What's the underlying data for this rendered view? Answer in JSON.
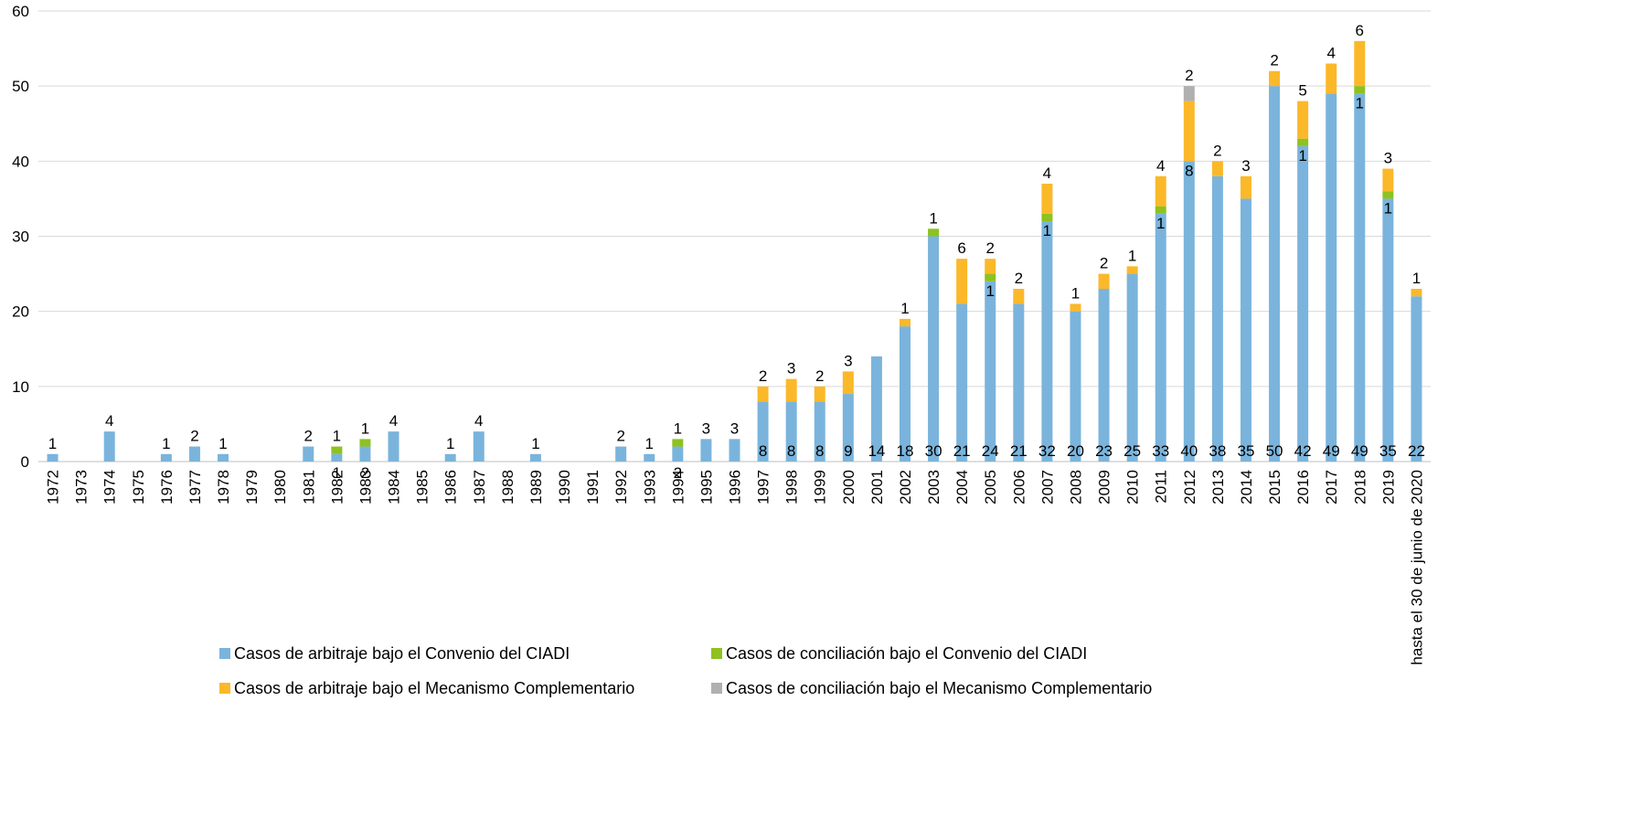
{
  "chart_data": {
    "type": "stacked_bar",
    "categories": [
      "1972",
      "1973",
      "1974",
      "1975",
      "1976",
      "1977",
      "1978",
      "1979",
      "1980",
      "1981",
      "1982",
      "1983",
      "1984",
      "1985",
      "1986",
      "1987",
      "1988",
      "1989",
      "1990",
      "1991",
      "1992",
      "1993",
      "1994",
      "1995",
      "1996",
      "1997",
      "1998",
      "1999",
      "2000",
      "2001",
      "2002",
      "2003",
      "2004",
      "2005",
      "2006",
      "2007",
      "2008",
      "2009",
      "2010",
      "2011",
      "2012",
      "2013",
      "2014",
      "2015",
      "2016",
      "2017",
      "2018",
      "2019",
      "hasta el 30 de junio de 2020"
    ],
    "series": [
      {
        "name": "Casos de arbitraje bajo el Convenio del CIADI",
        "color": "#7ab4dc",
        "values": [
          1,
          null,
          4,
          null,
          1,
          2,
          1,
          null,
          null,
          2,
          1,
          2,
          4,
          null,
          1,
          4,
          null,
          1,
          null,
          null,
          2,
          1,
          2,
          3,
          3,
          8,
          8,
          8,
          9,
          14,
          18,
          30,
          21,
          24,
          21,
          32,
          20,
          23,
          25,
          33,
          40,
          38,
          35,
          50,
          42,
          49,
          49,
          35,
          22
        ]
      },
      {
        "name": "Casos de conciliación bajo el Convenio del CIADI",
        "color": "#8dc21f",
        "values": [
          null,
          null,
          null,
          null,
          null,
          null,
          null,
          null,
          null,
          null,
          1,
          1,
          null,
          null,
          null,
          null,
          null,
          null,
          null,
          null,
          null,
          null,
          1,
          null,
          null,
          null,
          null,
          null,
          null,
          null,
          null,
          1,
          null,
          1,
          null,
          1,
          null,
          null,
          null,
          1,
          null,
          null,
          null,
          null,
          1,
          null,
          1,
          1,
          null
        ]
      },
      {
        "name": "Casos de arbitraje  bajo el Mecanismo Complementario",
        "color": "#fbb829",
        "values": [
          null,
          null,
          null,
          null,
          null,
          null,
          null,
          null,
          null,
          null,
          null,
          null,
          null,
          null,
          null,
          null,
          null,
          null,
          null,
          null,
          null,
          null,
          null,
          null,
          null,
          2,
          3,
          2,
          3,
          null,
          1,
          null,
          6,
          2,
          2,
          4,
          1,
          2,
          1,
          4,
          8,
          2,
          3,
          2,
          5,
          4,
          6,
          3,
          1
        ]
      },
      {
        "name": "Casos de conciliación bajo el Mecanismo Complementario",
        "color": "#b0b0b0",
        "values": [
          null,
          null,
          null,
          null,
          null,
          null,
          null,
          null,
          null,
          null,
          null,
          null,
          null,
          null,
          null,
          null,
          null,
          null,
          null,
          null,
          null,
          null,
          null,
          null,
          null,
          null,
          null,
          null,
          null,
          null,
          null,
          null,
          null,
          null,
          null,
          null,
          null,
          null,
          null,
          null,
          2,
          null,
          null,
          null,
          null,
          null,
          null,
          null,
          null
        ]
      }
    ],
    "ylim": [
      0,
      60
    ],
    "yticks": [
      0,
      10,
      20,
      30,
      40,
      50,
      60
    ],
    "grid": true,
    "legend": "bottom"
  }
}
